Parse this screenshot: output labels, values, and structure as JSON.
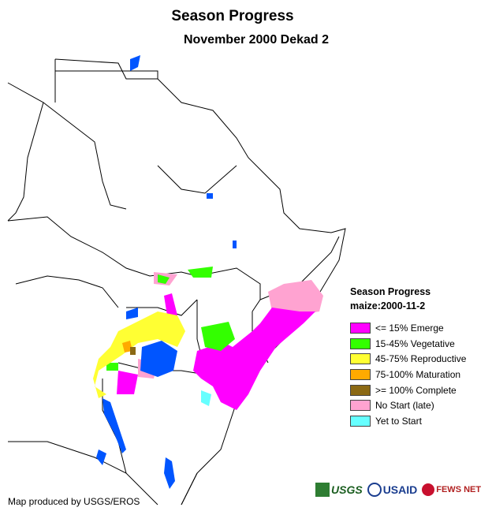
{
  "title": "Season Progress",
  "subtitle": "November 2000 Dekad 2",
  "legend": {
    "heading_line1": "Season Progress",
    "heading_line2": "maize:2000-11-2",
    "items": [
      {
        "label": "<= 15% Emerge",
        "color": "#ff00ff"
      },
      {
        "label": "15-45% Vegetative",
        "color": "#33ff00"
      },
      {
        "label": "45-75% Reproductive",
        "color": "#ffff33"
      },
      {
        "label": "75-100% Maturation",
        "color": "#ffaa00"
      },
      {
        "label": ">= 100% Complete",
        "color": "#8b6914"
      },
      {
        "label": "No Start (late)",
        "color": "#ffa3d1"
      },
      {
        "label": "Yet to Start",
        "color": "#66ffff"
      }
    ]
  },
  "colors": {
    "water": "#0055ff",
    "border": "#000000",
    "land": "#ffffff"
  },
  "credit": "Map produced by USGS/EROS",
  "logos": {
    "usgs": "USGS",
    "usaid": "USAID",
    "fews": "FEWS NET"
  }
}
